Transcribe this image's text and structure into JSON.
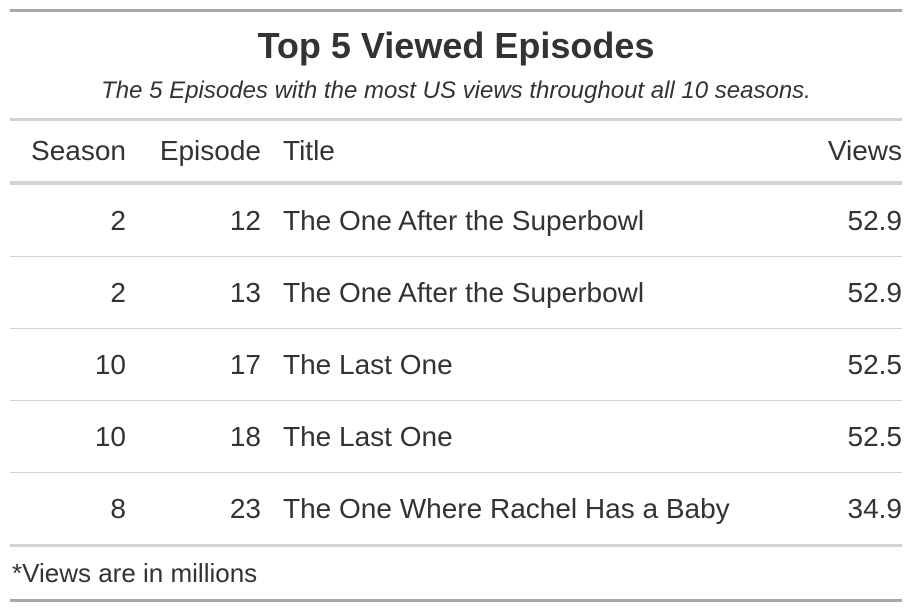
{
  "chart_data": {
    "type": "table",
    "title": "Top 5 Viewed Episodes",
    "subtitle": "The 5 Episodes with the most US views throughout all 10 seasons.",
    "columns": [
      "Season",
      "Episode",
      "Title",
      "Views"
    ],
    "rows": [
      [
        "2",
        "12",
        "The One After the Superbowl",
        "52.9"
      ],
      [
        "2",
        "13",
        "The One After the Superbowl",
        "52.9"
      ],
      [
        "10",
        "17",
        "The Last One",
        "52.5"
      ],
      [
        "10",
        "18",
        "The Last One",
        "52.5"
      ],
      [
        "8",
        "23",
        "The One Where Rachel Has a Baby",
        "34.9"
      ]
    ],
    "footnote": "*Views are in millions"
  }
}
